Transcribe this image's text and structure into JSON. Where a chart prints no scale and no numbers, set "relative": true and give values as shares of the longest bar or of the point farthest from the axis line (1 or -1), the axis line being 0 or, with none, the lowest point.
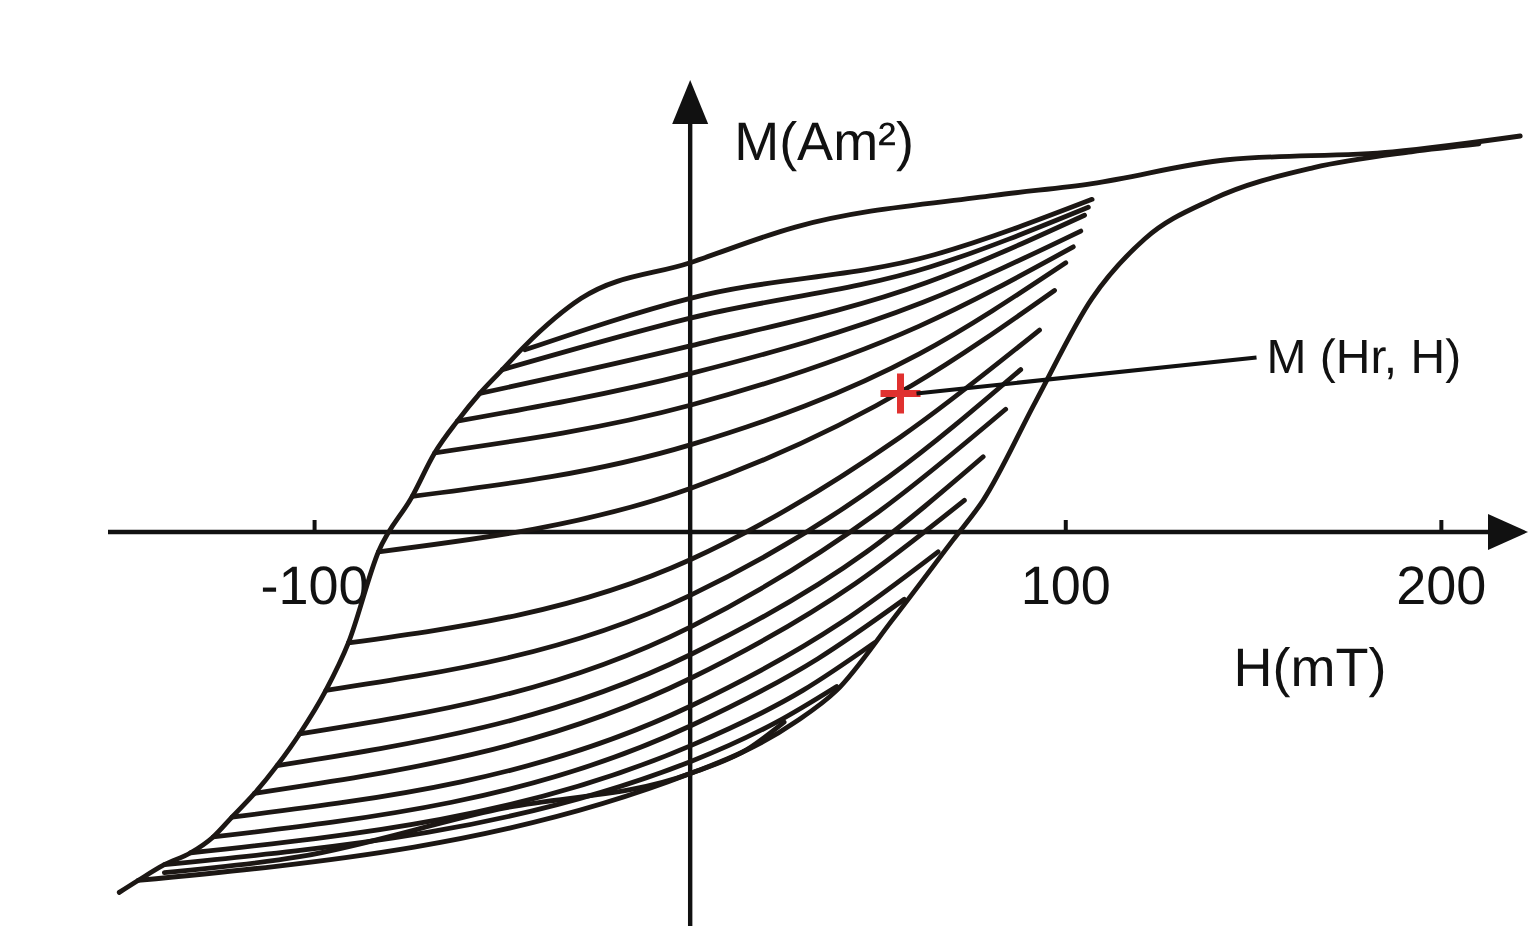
{
  "chart_data": {
    "type": "line",
    "relative": true,
    "xlabel": "H(mT)",
    "ylabel": "M(Am²)",
    "xlim": [
      -155,
      222
    ],
    "xticks": [
      -100,
      100,
      200
    ],
    "annotations": [
      {
        "text": "M (Hr, H)",
        "x": 56,
        "y": 0.35
      }
    ],
    "series": [
      {
        "color": "#1c1714",
        "x": [
          -152,
          -147,
          -140,
          -133,
          -127,
          -122,
          -116,
          -110,
          -104,
          -97,
          -91,
          -83,
          -74,
          -68,
          -62,
          -56,
          -50,
          -44,
          -29,
          0,
          28,
          81,
          107,
          143,
          187,
          221
        ],
        "values": [
          -0.91,
          -0.88,
          -0.84,
          -0.81,
          -0.77,
          -0.72,
          -0.66,
          -0.59,
          -0.51,
          -0.4,
          -0.28,
          -0.05,
          0.09,
          0.2,
          0.28,
          0.35,
          0.41,
          0.47,
          0.59,
          0.68,
          0.77,
          0.85,
          0.88,
          0.94,
          0.96,
          1.0
        ]
      },
      {
        "color": "#1c1714",
        "x": [
          -140,
          -104,
          -51,
          0,
          28,
          39,
          54,
          70,
          78,
          92,
          107,
          121,
          139,
          166,
          192,
          210
        ],
        "values": [
          -0.86,
          -0.82,
          -0.7,
          -0.61,
          -0.48,
          -0.4,
          -0.22,
          -0.02,
          0.08,
          0.33,
          0.59,
          0.74,
          0.84,
          0.92,
          0.96,
          0.98
        ]
      },
      {
        "color": "#1c1714",
        "x": [
          -44,
          0,
          65,
          107
        ],
        "values": [
          0.46,
          0.59,
          0.7,
          0.84
        ]
      },
      {
        "color": "#1c1714",
        "x": [
          -50,
          0,
          64,
          106
        ],
        "values": [
          0.41,
          0.54,
          0.67,
          0.82
        ]
      },
      {
        "color": "#1c1714",
        "x": [
          -56,
          0,
          63,
          105
        ],
        "values": [
          0.35,
          0.47,
          0.63,
          0.8
        ]
      },
      {
        "color": "#1c1714",
        "x": [
          -62,
          0,
          62,
          104
        ],
        "values": [
          0.28,
          0.4,
          0.58,
          0.76
        ]
      },
      {
        "color": "#1c1714",
        "x": [
          -68,
          0,
          61,
          102
        ],
        "values": [
          0.2,
          0.32,
          0.52,
          0.72
        ]
      },
      {
        "color": "#1c1714",
        "x": [
          -74,
          0,
          61,
          100
        ],
        "values": [
          0.09,
          0.22,
          0.45,
          0.68
        ]
      },
      {
        "color": "#1c1714",
        "x": [
          -83,
          0,
          59,
          97
        ],
        "values": [
          -0.05,
          0.11,
          0.37,
          0.61
        ]
      },
      {
        "color": "#1c1714",
        "x": [
          -91,
          0,
          56,
          93
        ],
        "values": [
          -0.28,
          -0.07,
          0.24,
          0.51
        ]
      },
      {
        "color": "#1c1714",
        "x": [
          -97,
          0,
          53,
          88
        ],
        "values": [
          -0.4,
          -0.16,
          0.14,
          0.41
        ]
      },
      {
        "color": "#1c1714",
        "x": [
          -104,
          0,
          50,
          84
        ],
        "values": [
          -0.51,
          -0.24,
          0.05,
          0.31
        ]
      },
      {
        "color": "#1c1714",
        "x": [
          -110,
          0,
          47,
          78
        ],
        "values": [
          -0.59,
          -0.31,
          -0.05,
          0.19
        ]
      },
      {
        "color": "#1c1714",
        "x": [
          -116,
          0,
          44,
          73
        ],
        "values": [
          -0.66,
          -0.37,
          -0.13,
          0.08
        ]
      },
      {
        "color": "#1c1714",
        "x": [
          -122,
          0,
          40,
          66
        ],
        "values": [
          -0.72,
          -0.44,
          -0.23,
          -0.05
        ]
      },
      {
        "color": "#1c1714",
        "x": [
          -127,
          0,
          34,
          57
        ],
        "values": [
          -0.77,
          -0.49,
          -0.32,
          -0.17
        ]
      },
      {
        "color": "#1c1714",
        "x": [
          -133,
          0,
          30,
          49
        ],
        "values": [
          -0.81,
          -0.54,
          -0.4,
          -0.28
        ]
      },
      {
        "color": "#1c1714",
        "x": [
          -140,
          0,
          23,
          39
        ],
        "values": [
          -0.84,
          -0.58,
          -0.48,
          -0.39
        ]
      },
      {
        "color": "#1c1714",
        "x": [
          -147,
          0,
          15,
          25
        ],
        "values": [
          -0.88,
          -0.61,
          -0.55,
          -0.48
        ]
      },
      {
        "type": "scatter",
        "marker": "cross",
        "color": "#e0312f",
        "x": [
          56
        ],
        "values": [
          0.35
        ]
      }
    ]
  }
}
